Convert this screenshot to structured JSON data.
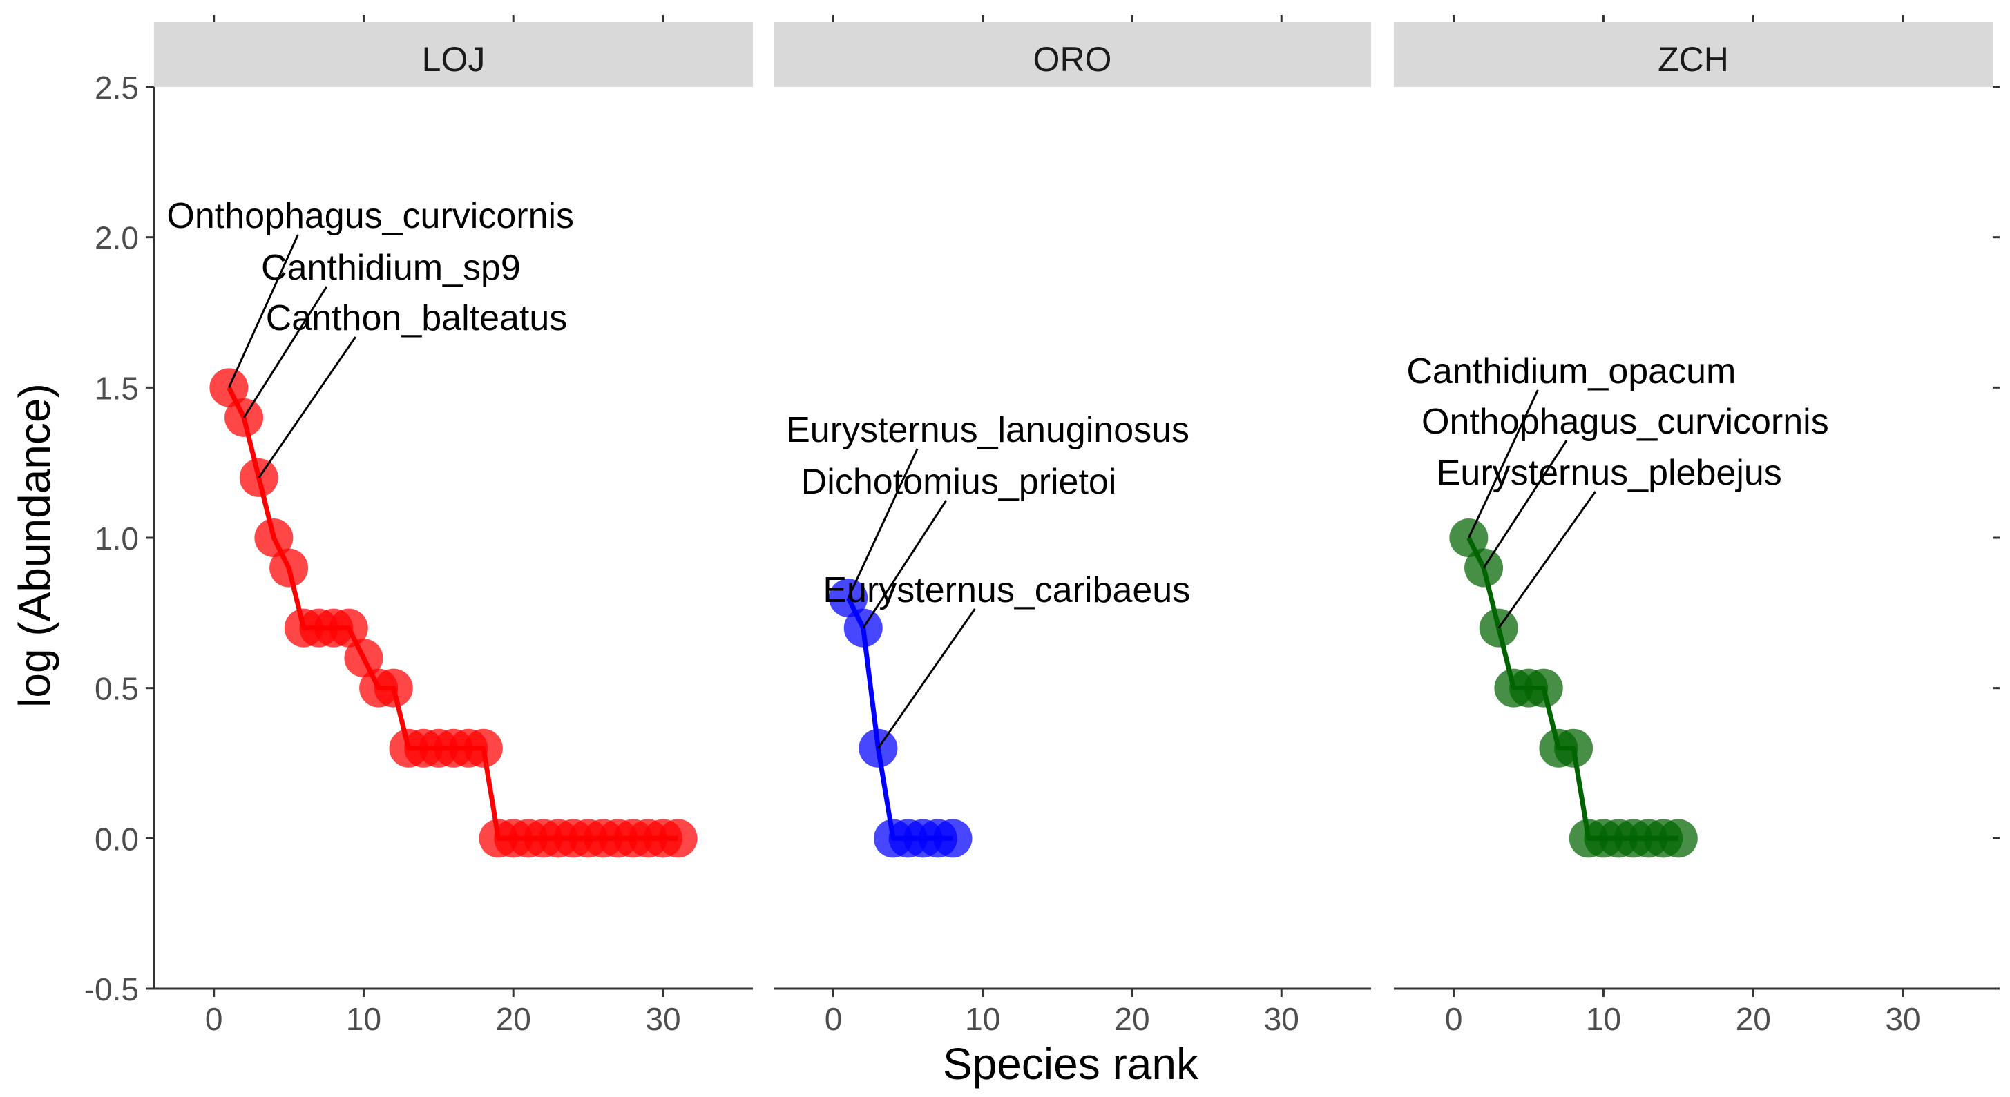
{
  "chart_data": {
    "type": "line",
    "facet_by": "Site",
    "xlabel": "Species rank",
    "ylabel": "log (Abundance)",
    "xlim": [
      -4,
      36
    ],
    "ylim": [
      -0.5,
      2.5
    ],
    "x_ticks": [
      0,
      10,
      20,
      30
    ],
    "x_tick_labels": [
      "0",
      "10",
      "20",
      "30"
    ],
    "y_ticks": [
      -0.5,
      0.0,
      0.5,
      1.0,
      1.5,
      2.0,
      2.5
    ],
    "y_tick_labels": [
      "-0.5",
      "0.0",
      "0.5",
      "1.0",
      "1.5",
      "2.0",
      "2.5"
    ],
    "grid": false,
    "legend": "none",
    "panels": [
      {
        "name": "LOJ",
        "color": "#ff0000",
        "x": [
          1,
          2,
          3,
          4,
          5,
          6,
          7,
          8,
          9,
          10,
          11,
          12,
          13,
          14,
          15,
          16,
          17,
          18,
          19,
          20,
          21,
          22,
          23,
          24,
          25,
          26,
          27,
          28,
          29,
          30,
          31
        ],
        "y": [
          1.5,
          1.4,
          1.2,
          1.0,
          0.9,
          0.7,
          0.7,
          0.7,
          0.7,
          0.6,
          0.5,
          0.5,
          0.3,
          0.3,
          0.3,
          0.3,
          0.3,
          0.3,
          0.0,
          0.0,
          0.0,
          0.0,
          0.0,
          0.0,
          0.0,
          0.0,
          0.0,
          0.0,
          0.0,
          0.0,
          0.0
        ],
        "labels": [
          {
            "text": "Onthophagus_curvicornis",
            "rank": 1,
            "value": 1.5
          },
          {
            "text": "Canthidium_sp9",
            "rank": 2,
            "value": 1.4
          },
          {
            "text": "Canthon_balteatus",
            "rank": 3,
            "value": 1.2
          }
        ]
      },
      {
        "name": "ORO",
        "color": "#0000ff",
        "x": [
          1,
          2,
          3,
          4,
          5,
          6,
          7,
          8
        ],
        "y": [
          0.8,
          0.7,
          0.3,
          0.0,
          0.0,
          0.0,
          0.0,
          0.0
        ],
        "labels": [
          {
            "text": "Eurysternus_lanuginosus",
            "rank": 1,
            "value": 0.8
          },
          {
            "text": "Dichotomius_prietoi",
            "rank": 2,
            "value": 0.7
          },
          {
            "text": "Eurysternus_caribaeus",
            "rank": 3,
            "value": 0.3
          }
        ]
      },
      {
        "name": "ZCH",
        "color": "#006400",
        "x": [
          1,
          2,
          3,
          4,
          5,
          6,
          7,
          8,
          9,
          10,
          11,
          12,
          13,
          14,
          15
        ],
        "y": [
          1.0,
          0.9,
          0.7,
          0.5,
          0.5,
          0.5,
          0.3,
          0.3,
          0.0,
          0.0,
          0.0,
          0.0,
          0.0,
          0.0,
          0.0
        ],
        "labels": [
          {
            "text": "Canthidium_opacum",
            "rank": 1,
            "value": 1.0
          },
          {
            "text": "Onthophagus_curvicornis",
            "rank": 2,
            "value": 0.9
          },
          {
            "text": "Eurysternus_plebejus",
            "rank": 3,
            "value": 0.7
          }
        ]
      }
    ]
  }
}
